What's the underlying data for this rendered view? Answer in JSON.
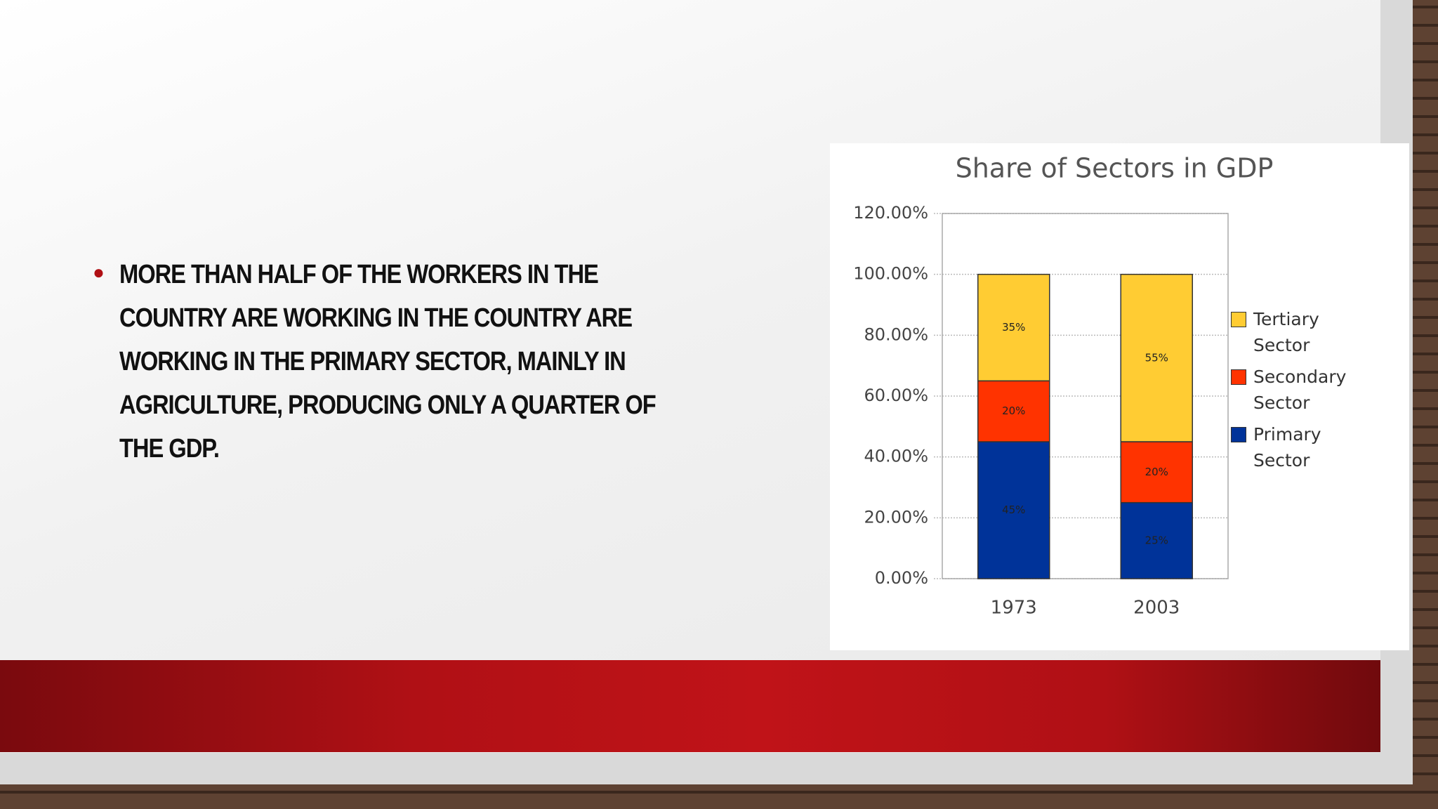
{
  "slide": {
    "bullet": "MORE THAN HALF OF THE WORKERS IN THE COUNTRY ARE WORKING IN THE COUNTRY ARE WORKING IN THE PRIMARY SECTOR, MAINLY IN AGRICULTURE, PRODUCING ONLY A QUARTER OF THE GDP."
  },
  "chart_data": {
    "type": "stacked-bar",
    "title": "Share of Sectors in GDP",
    "categories": [
      "1973",
      "2003"
    ],
    "series": [
      {
        "name": "Primary Sector",
        "color": "#003399",
        "values": [
          45,
          25
        ],
        "value_labels": [
          "45%",
          "25%"
        ]
      },
      {
        "name": "Secondary Sector",
        "color": "#ff3300",
        "values": [
          20,
          20
        ],
        "value_labels": [
          "20%",
          "20%"
        ]
      },
      {
        "name": "Tertiary Sector",
        "color": "#ffcc33",
        "values": [
          35,
          55
        ],
        "value_labels": [
          "35%",
          "55%"
        ]
      }
    ],
    "ylim": [
      0,
      120
    ],
    "yticks": [
      {
        "value": 0,
        "label": "0.00%"
      },
      {
        "value": 20,
        "label": "20.00%"
      },
      {
        "value": 40,
        "label": "40.00%"
      },
      {
        "value": 60,
        "label": "60.00%"
      },
      {
        "value": 80,
        "label": "80.00%"
      },
      {
        "value": 100,
        "label": "100.00%"
      },
      {
        "value": 120,
        "label": "120.00%"
      }
    ],
    "grid": true,
    "legend": "right"
  }
}
